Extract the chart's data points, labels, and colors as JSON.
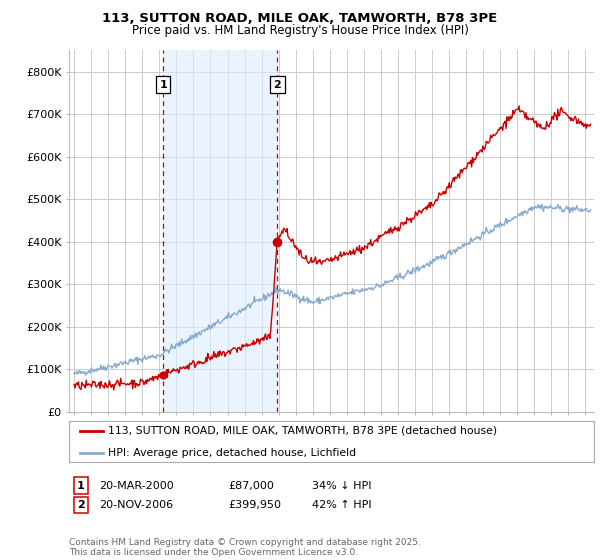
{
  "title": "113, SUTTON ROAD, MILE OAK, TAMWORTH, B78 3PE",
  "subtitle": "Price paid vs. HM Land Registry's House Price Index (HPI)",
  "ylim": [
    0,
    850000
  ],
  "yticks": [
    0,
    100000,
    200000,
    300000,
    400000,
    500000,
    600000,
    700000,
    800000
  ],
  "ytick_labels": [
    "£0",
    "£100K",
    "£200K",
    "£300K",
    "£400K",
    "£500K",
    "£600K",
    "£700K",
    "£800K"
  ],
  "background_color": "#ffffff",
  "plot_bg_color": "#ffffff",
  "grid_color": "#cccccc",
  "shade_color": "#ddeeff",
  "sale1_date_x": 2000.22,
  "sale1_price": 87000,
  "sale2_date_x": 2006.92,
  "sale2_price": 399950,
  "legend_line1": "113, SUTTON ROAD, MILE OAK, TAMWORTH, B78 3PE (detached house)",
  "legend_line2": "HPI: Average price, detached house, Lichfield",
  "footer": "Contains HM Land Registry data © Crown copyright and database right 2025.\nThis data is licensed under the Open Government Licence v3.0.",
  "line_color_red": "#cc0000",
  "line_color_blue": "#88aacc",
  "vline_color": "#cc0000",
  "xlim_left": 1994.7,
  "xlim_right": 2025.5
}
